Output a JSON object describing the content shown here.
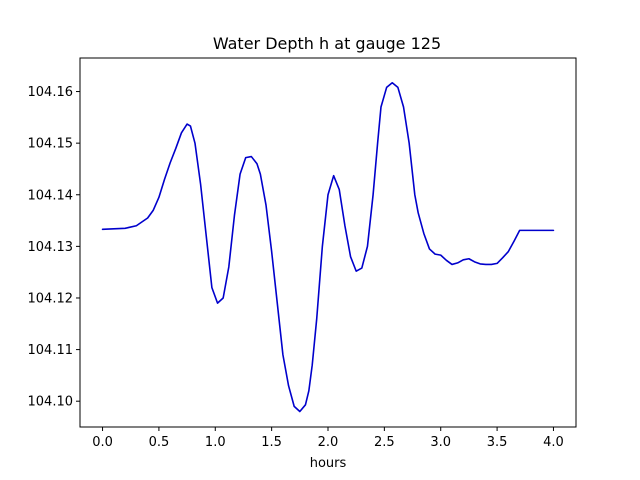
{
  "chart_data": {
    "type": "line",
    "title": "Water Depth h at gauge 125",
    "xlabel": "hours",
    "ylabel": "",
    "xlim": [
      -0.2,
      4.2
    ],
    "ylim": [
      104.095,
      104.1665
    ],
    "x_ticks": [
      0.0,
      0.5,
      1.0,
      1.5,
      2.0,
      2.5,
      3.0,
      3.5,
      4.0
    ],
    "x_tick_labels": [
      "0.0",
      "0.5",
      "1.0",
      "1.5",
      "2.0",
      "2.5",
      "3.0",
      "3.5",
      "4.0"
    ],
    "y_ticks": [
      104.1,
      104.11,
      104.12,
      104.13,
      104.14,
      104.15,
      104.16
    ],
    "y_tick_labels": [
      "104.10",
      "104.11",
      "104.12",
      "104.13",
      "104.14",
      "104.15",
      "104.16"
    ],
    "grid": false,
    "series": [
      {
        "color": "#0000cc",
        "x": [
          0.0,
          0.1,
          0.2,
          0.3,
          0.4,
          0.45,
          0.5,
          0.55,
          0.6,
          0.65,
          0.7,
          0.75,
          0.78,
          0.82,
          0.87,
          0.92,
          0.97,
          1.02,
          1.07,
          1.12,
          1.17,
          1.22,
          1.27,
          1.32,
          1.37,
          1.4,
          1.45,
          1.5,
          1.55,
          1.6,
          1.65,
          1.7,
          1.75,
          1.8,
          1.83,
          1.86,
          1.9,
          1.95,
          2.0,
          2.05,
          2.1,
          2.15,
          2.2,
          2.25,
          2.3,
          2.35,
          2.4,
          2.44,
          2.47,
          2.52,
          2.57,
          2.62,
          2.67,
          2.72,
          2.77,
          2.8,
          2.85,
          2.9,
          2.95,
          3.0,
          3.05,
          3.1,
          3.15,
          3.2,
          3.25,
          3.3,
          3.35,
          3.4,
          3.45,
          3.5,
          3.55,
          3.6,
          3.65,
          3.7,
          3.75,
          3.8,
          3.85,
          3.9,
          3.95,
          4.0
        ],
        "y": [
          104.1333,
          104.1334,
          104.1335,
          104.134,
          104.1355,
          104.137,
          104.1395,
          104.143,
          104.1462,
          104.149,
          104.152,
          104.1537,
          104.1533,
          104.15,
          104.142,
          104.132,
          104.122,
          104.119,
          104.12,
          104.126,
          104.136,
          104.144,
          104.1472,
          104.1474,
          104.146,
          104.144,
          104.138,
          104.129,
          104.119,
          104.109,
          104.103,
          104.099,
          104.098,
          104.0993,
          104.102,
          104.107,
          104.116,
          104.13,
          104.14,
          104.1437,
          104.141,
          104.134,
          104.128,
          104.1252,
          104.1258,
          104.13,
          104.14,
          104.15,
          104.157,
          104.1608,
          104.1617,
          104.1608,
          104.157,
          104.15,
          104.14,
          104.1365,
          104.1325,
          104.1295,
          104.1285,
          104.1283,
          104.1273,
          104.1265,
          104.1268,
          104.1274,
          104.1276,
          104.127,
          104.1266,
          104.1265,
          104.1265,
          104.1267,
          104.1278,
          104.129,
          104.131,
          104.1331,
          104.1331,
          104.1331,
          104.1331,
          104.1331,
          104.1331,
          104.1331
        ]
      }
    ]
  }
}
